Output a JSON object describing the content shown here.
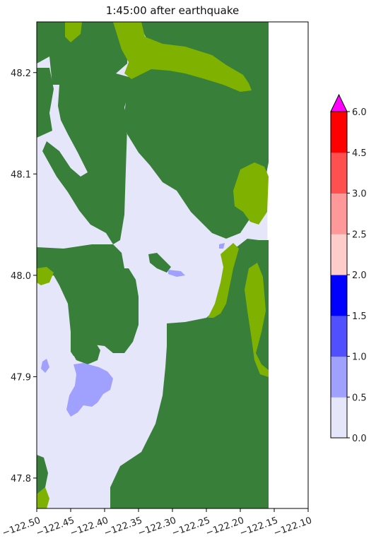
{
  "chart_data": {
    "type": "heatmap",
    "title": "1:45:00 after earthquake",
    "xlabel": "",
    "ylabel": "",
    "xlim": [
      -122.5,
      -122.1
    ],
    "ylim": [
      47.77,
      48.25
    ],
    "data_extent_east": -122.16,
    "xticks": [
      -122.5,
      -122.45,
      -122.4,
      -122.35,
      -122.3,
      -122.25,
      -122.2,
      -122.15,
      -122.1
    ],
    "xtick_labels": [
      "−122.50",
      "−122.45",
      "−122.40",
      "−122.35",
      "−122.30",
      "−122.25",
      "−122.20",
      "−122.15",
      "−122.10"
    ],
    "yticks": [
      47.8,
      47.9,
      48.0,
      48.1,
      48.2
    ],
    "ytick_labels": [
      "47.8",
      "47.9",
      "48.0",
      "48.1",
      "48.2"
    ],
    "colorbar": {
      "levels": [
        0.0,
        0.5,
        1.0,
        1.5,
        2.0,
        2.5,
        3.0,
        4.5,
        6.0
      ],
      "labels": [
        "0.0",
        "0.5",
        "1.0",
        "1.5",
        "2.0",
        "2.5",
        "3.0",
        "4.5",
        "6.0"
      ],
      "colors": [
        "#e6e6fa",
        "#a0a0ff",
        "#5050ff",
        "#0000ff",
        "#ffcccc",
        "#ff9999",
        "#ff5050",
        "#ff0000"
      ],
      "extend_color": "#ff00ff",
      "extend": "max"
    },
    "land_color": "#38803a",
    "inundated_land_color": "#7fb200",
    "water_color": "#e6e6fa",
    "no_data_color": "#ffffff"
  }
}
